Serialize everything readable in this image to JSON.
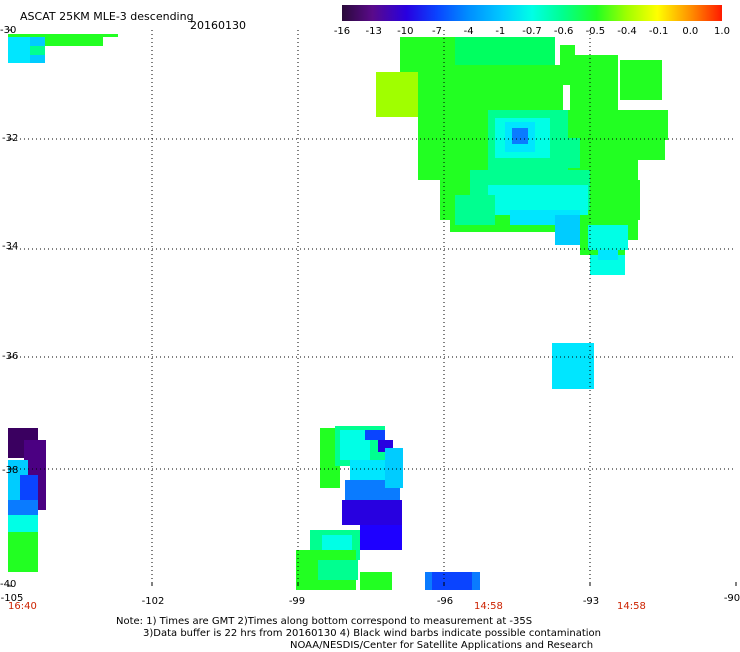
{
  "header": {
    "title": "ASCAT 25KM MLE-3 descending",
    "date": "20160130"
  },
  "colorbar": {
    "labels": [
      "-16",
      "-13",
      "-10",
      "-7",
      "-4",
      "-1",
      "-0.7",
      "-0.6",
      "-0.5",
      "-0.4",
      "-0.1",
      "0.0",
      "1.0"
    ],
    "colors": [
      "#2a0a3a",
      "#5a0a8a",
      "#2800e0",
      "#0a44ff",
      "#008cff",
      "#00c8ff",
      "#00ffe6",
      "#00ff90",
      "#22ff22",
      "#a0ff00",
      "#ffff00",
      "#ff8c00",
      "#ff1a00"
    ]
  },
  "axes": {
    "y_ticks": [
      "-30",
      "-32",
      "-34",
      "-36",
      "-38",
      "-40"
    ],
    "x_ticks": [
      "-105",
      "-102",
      "-99",
      "-96",
      "-93",
      "-90"
    ]
  },
  "pass_times": [
    "16:40",
    "14:58",
    "14:58"
  ],
  "notes": [
    "Note: 1) Times are GMT 2)Times along bottom correspond to measurement at -35S",
    "3)Data buffer is 22 hrs from 20160130 4) Black wind barbs indicate possible contamination",
    "NOAA/NESDIS/Center for Satellite Applications and Research"
  ]
}
